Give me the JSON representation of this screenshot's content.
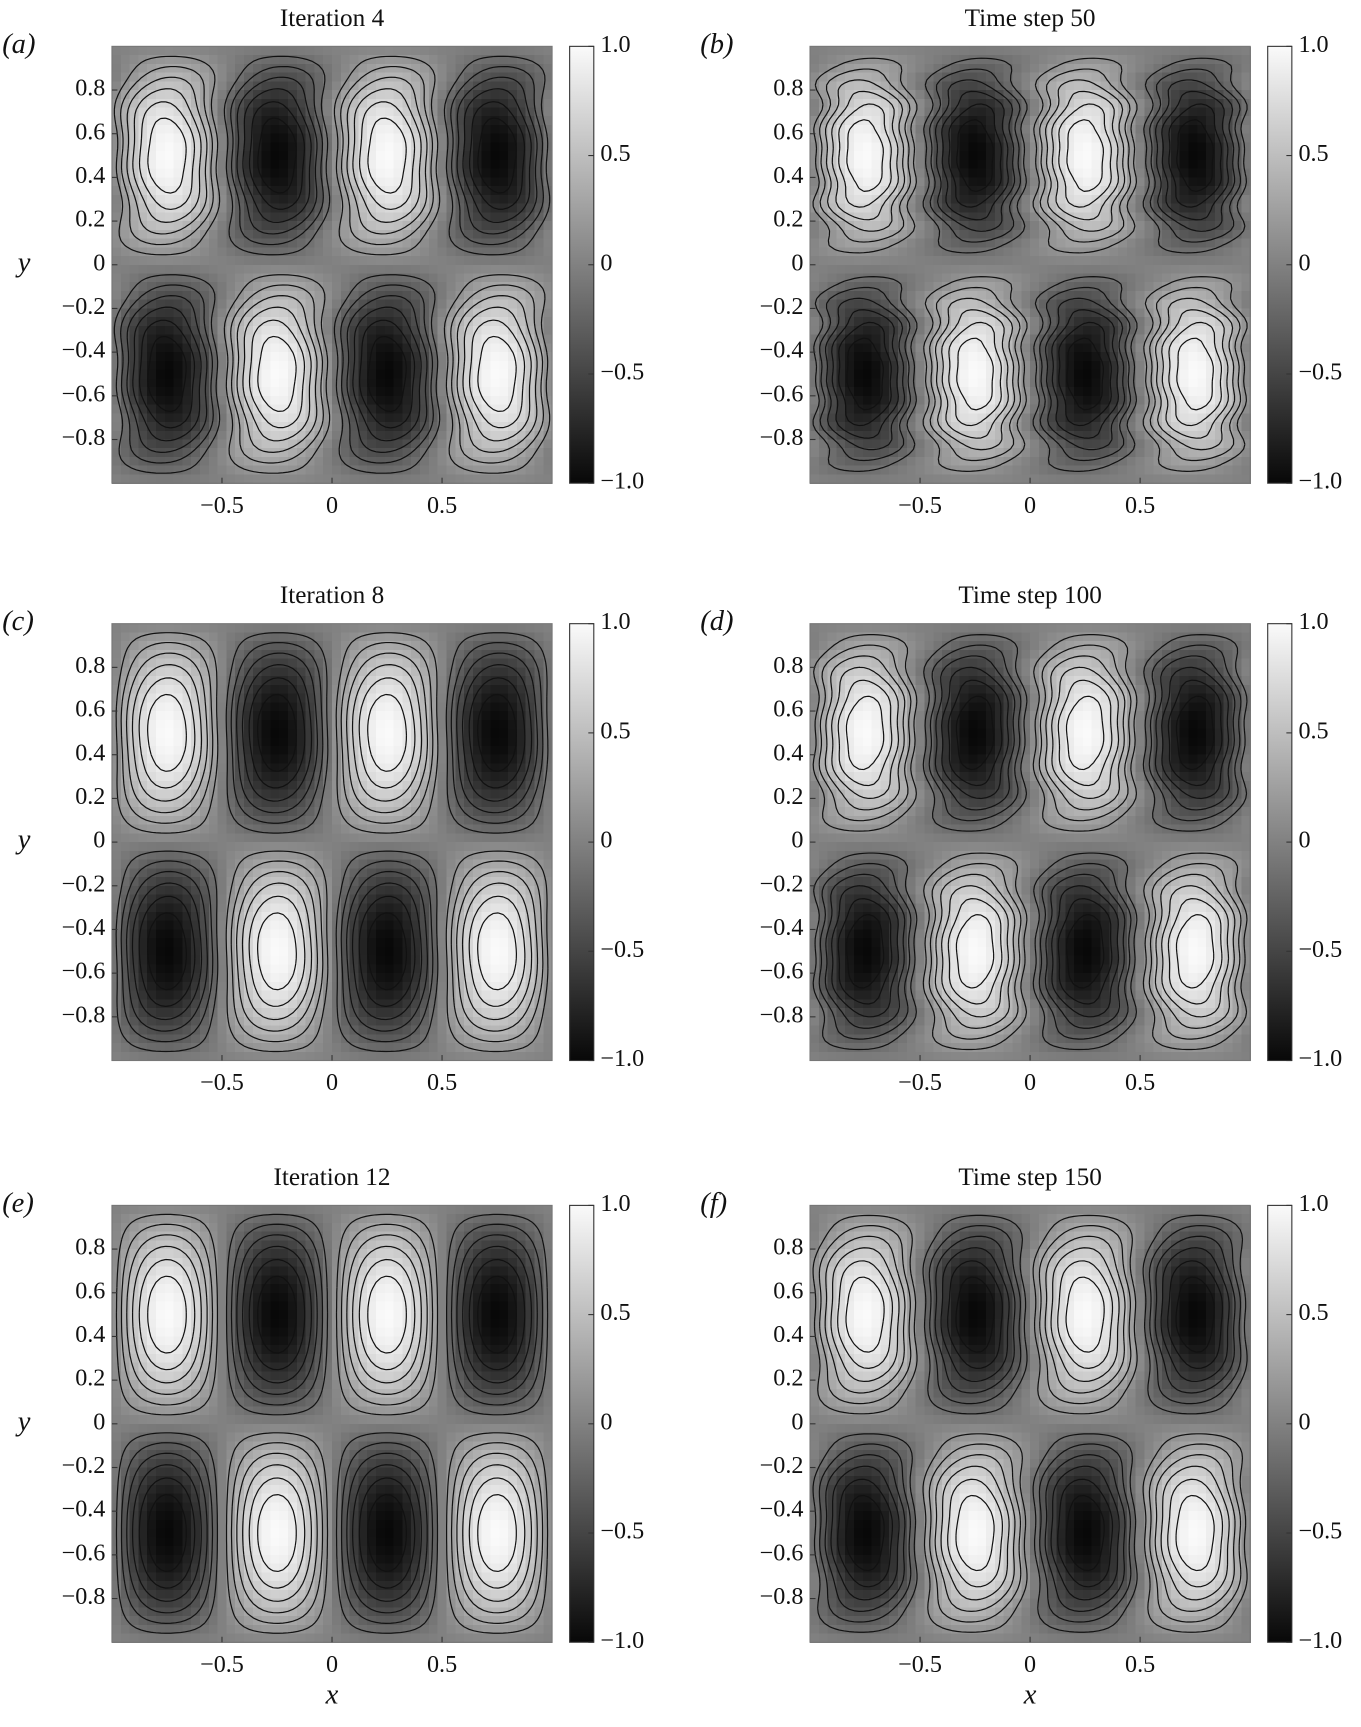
{
  "chart_data": [
    {
      "type": "contour",
      "panel_label": "(a)",
      "title": "Iteration 4",
      "ylabel": "y",
      "xlim": [
        -1,
        1
      ],
      "ylim": [
        -1,
        1
      ],
      "xticks": [
        {
          "value": -0.5,
          "label": "−0.5"
        },
        0,
        0.5
      ],
      "yticks": [
        0.8,
        0.6,
        0.4,
        0.2,
        0,
        {
          "value": -0.2,
          "label": "−0.2"
        },
        {
          "value": -0.4,
          "label": "−0.4"
        },
        {
          "value": -0.6,
          "label": "−0.6"
        },
        {
          "value": -0.8,
          "label": "−0.8"
        }
      ],
      "clim": [
        -1,
        1
      ],
      "cticks": [
        {
          "value": 1,
          "label": "1.0"
        },
        0.5,
        0,
        {
          "value": -0.5,
          "label": "−0.5"
        },
        {
          "value": -1,
          "label": "−1.0"
        }
      ]
    },
    {
      "type": "contour",
      "panel_label": "(b)",
      "title": "Time step 50",
      "xlim": [
        -1,
        1
      ],
      "ylim": [
        -1,
        1
      ],
      "xticks": [
        {
          "value": -0.5,
          "label": "−0.5"
        },
        0,
        0.5
      ],
      "yticks": [
        0.8,
        0.6,
        0.4,
        0.2,
        0,
        {
          "value": -0.2,
          "label": "−0.2"
        },
        {
          "value": -0.4,
          "label": "−0.4"
        },
        {
          "value": -0.6,
          "label": "−0.6"
        },
        {
          "value": -0.8,
          "label": "−0.8"
        }
      ],
      "clim": [
        -1,
        1
      ],
      "cticks": [
        {
          "value": 1,
          "label": "1.0"
        },
        0.5,
        0,
        {
          "value": -0.5,
          "label": "−0.5"
        },
        {
          "value": -1,
          "label": "−1.0"
        }
      ]
    },
    {
      "type": "contour",
      "panel_label": "(c)",
      "title": "Iteration 8",
      "ylabel": "y",
      "xlim": [
        -1,
        1
      ],
      "ylim": [
        -1,
        1
      ],
      "xticks": [
        {
          "value": -0.5,
          "label": "−0.5"
        },
        0,
        0.5
      ],
      "yticks": [
        0.8,
        0.6,
        0.4,
        0.2,
        0,
        {
          "value": -0.2,
          "label": "−0.2"
        },
        {
          "value": -0.4,
          "label": "−0.4"
        },
        {
          "value": -0.6,
          "label": "−0.6"
        },
        {
          "value": -0.8,
          "label": "−0.8"
        }
      ],
      "clim": [
        -1,
        1
      ],
      "cticks": [
        {
          "value": 1,
          "label": "1.0"
        },
        0.5,
        0,
        {
          "value": -0.5,
          "label": "−0.5"
        },
        {
          "value": -1,
          "label": "−1.0"
        }
      ]
    },
    {
      "type": "contour",
      "panel_label": "(d)",
      "title": "Time step 100",
      "xlim": [
        -1,
        1
      ],
      "ylim": [
        -1,
        1
      ],
      "xticks": [
        {
          "value": -0.5,
          "label": "−0.5"
        },
        0,
        0.5
      ],
      "yticks": [
        0.8,
        0.6,
        0.4,
        0.2,
        0,
        {
          "value": -0.2,
          "label": "−0.2"
        },
        {
          "value": -0.4,
          "label": "−0.4"
        },
        {
          "value": -0.6,
          "label": "−0.6"
        },
        {
          "value": -0.8,
          "label": "−0.8"
        }
      ],
      "clim": [
        -1,
        1
      ],
      "cticks": [
        {
          "value": 1,
          "label": "1.0"
        },
        0.5,
        0,
        {
          "value": -0.5,
          "label": "−0.5"
        },
        {
          "value": -1,
          "label": "−1.0"
        }
      ]
    },
    {
      "type": "contour",
      "panel_label": "(e)",
      "title": "Iteration 12",
      "ylabel": "y",
      "xlabel": "x",
      "xlim": [
        -1,
        1
      ],
      "ylim": [
        -1,
        1
      ],
      "xticks": [
        {
          "value": -0.5,
          "label": "−0.5"
        },
        0,
        0.5
      ],
      "yticks": [
        0.8,
        0.6,
        0.4,
        0.2,
        0,
        {
          "value": -0.2,
          "label": "−0.2"
        },
        {
          "value": -0.4,
          "label": "−0.4"
        },
        {
          "value": -0.6,
          "label": "−0.6"
        },
        {
          "value": -0.8,
          "label": "−0.8"
        }
      ],
      "clim": [
        -1,
        1
      ],
      "cticks": [
        {
          "value": 1,
          "label": "1.0"
        },
        0.5,
        0,
        {
          "value": -0.5,
          "label": "−0.5"
        },
        {
          "value": -1,
          "label": "−1.0"
        }
      ]
    },
    {
      "type": "contour",
      "panel_label": "(f)",
      "title": "Time step 150",
      "xlabel": "x",
      "xlim": [
        -1,
        1
      ],
      "ylim": [
        -1,
        1
      ],
      "xticks": [
        {
          "value": -0.5,
          "label": "−0.5"
        },
        0,
        0.5
      ],
      "yticks": [
        0.8,
        0.6,
        0.4,
        0.2,
        0,
        {
          "value": -0.2,
          "label": "−0.2"
        },
        {
          "value": -0.4,
          "label": "−0.4"
        },
        {
          "value": -0.6,
          "label": "−0.6"
        },
        {
          "value": -0.8,
          "label": "−0.8"
        }
      ],
      "clim": [
        -1,
        1
      ],
      "cticks": [
        {
          "value": 1,
          "label": "1.0"
        },
        0.5,
        0,
        {
          "value": -0.5,
          "label": "−0.5"
        },
        {
          "value": -1,
          "label": "−1.0"
        }
      ]
    }
  ]
}
